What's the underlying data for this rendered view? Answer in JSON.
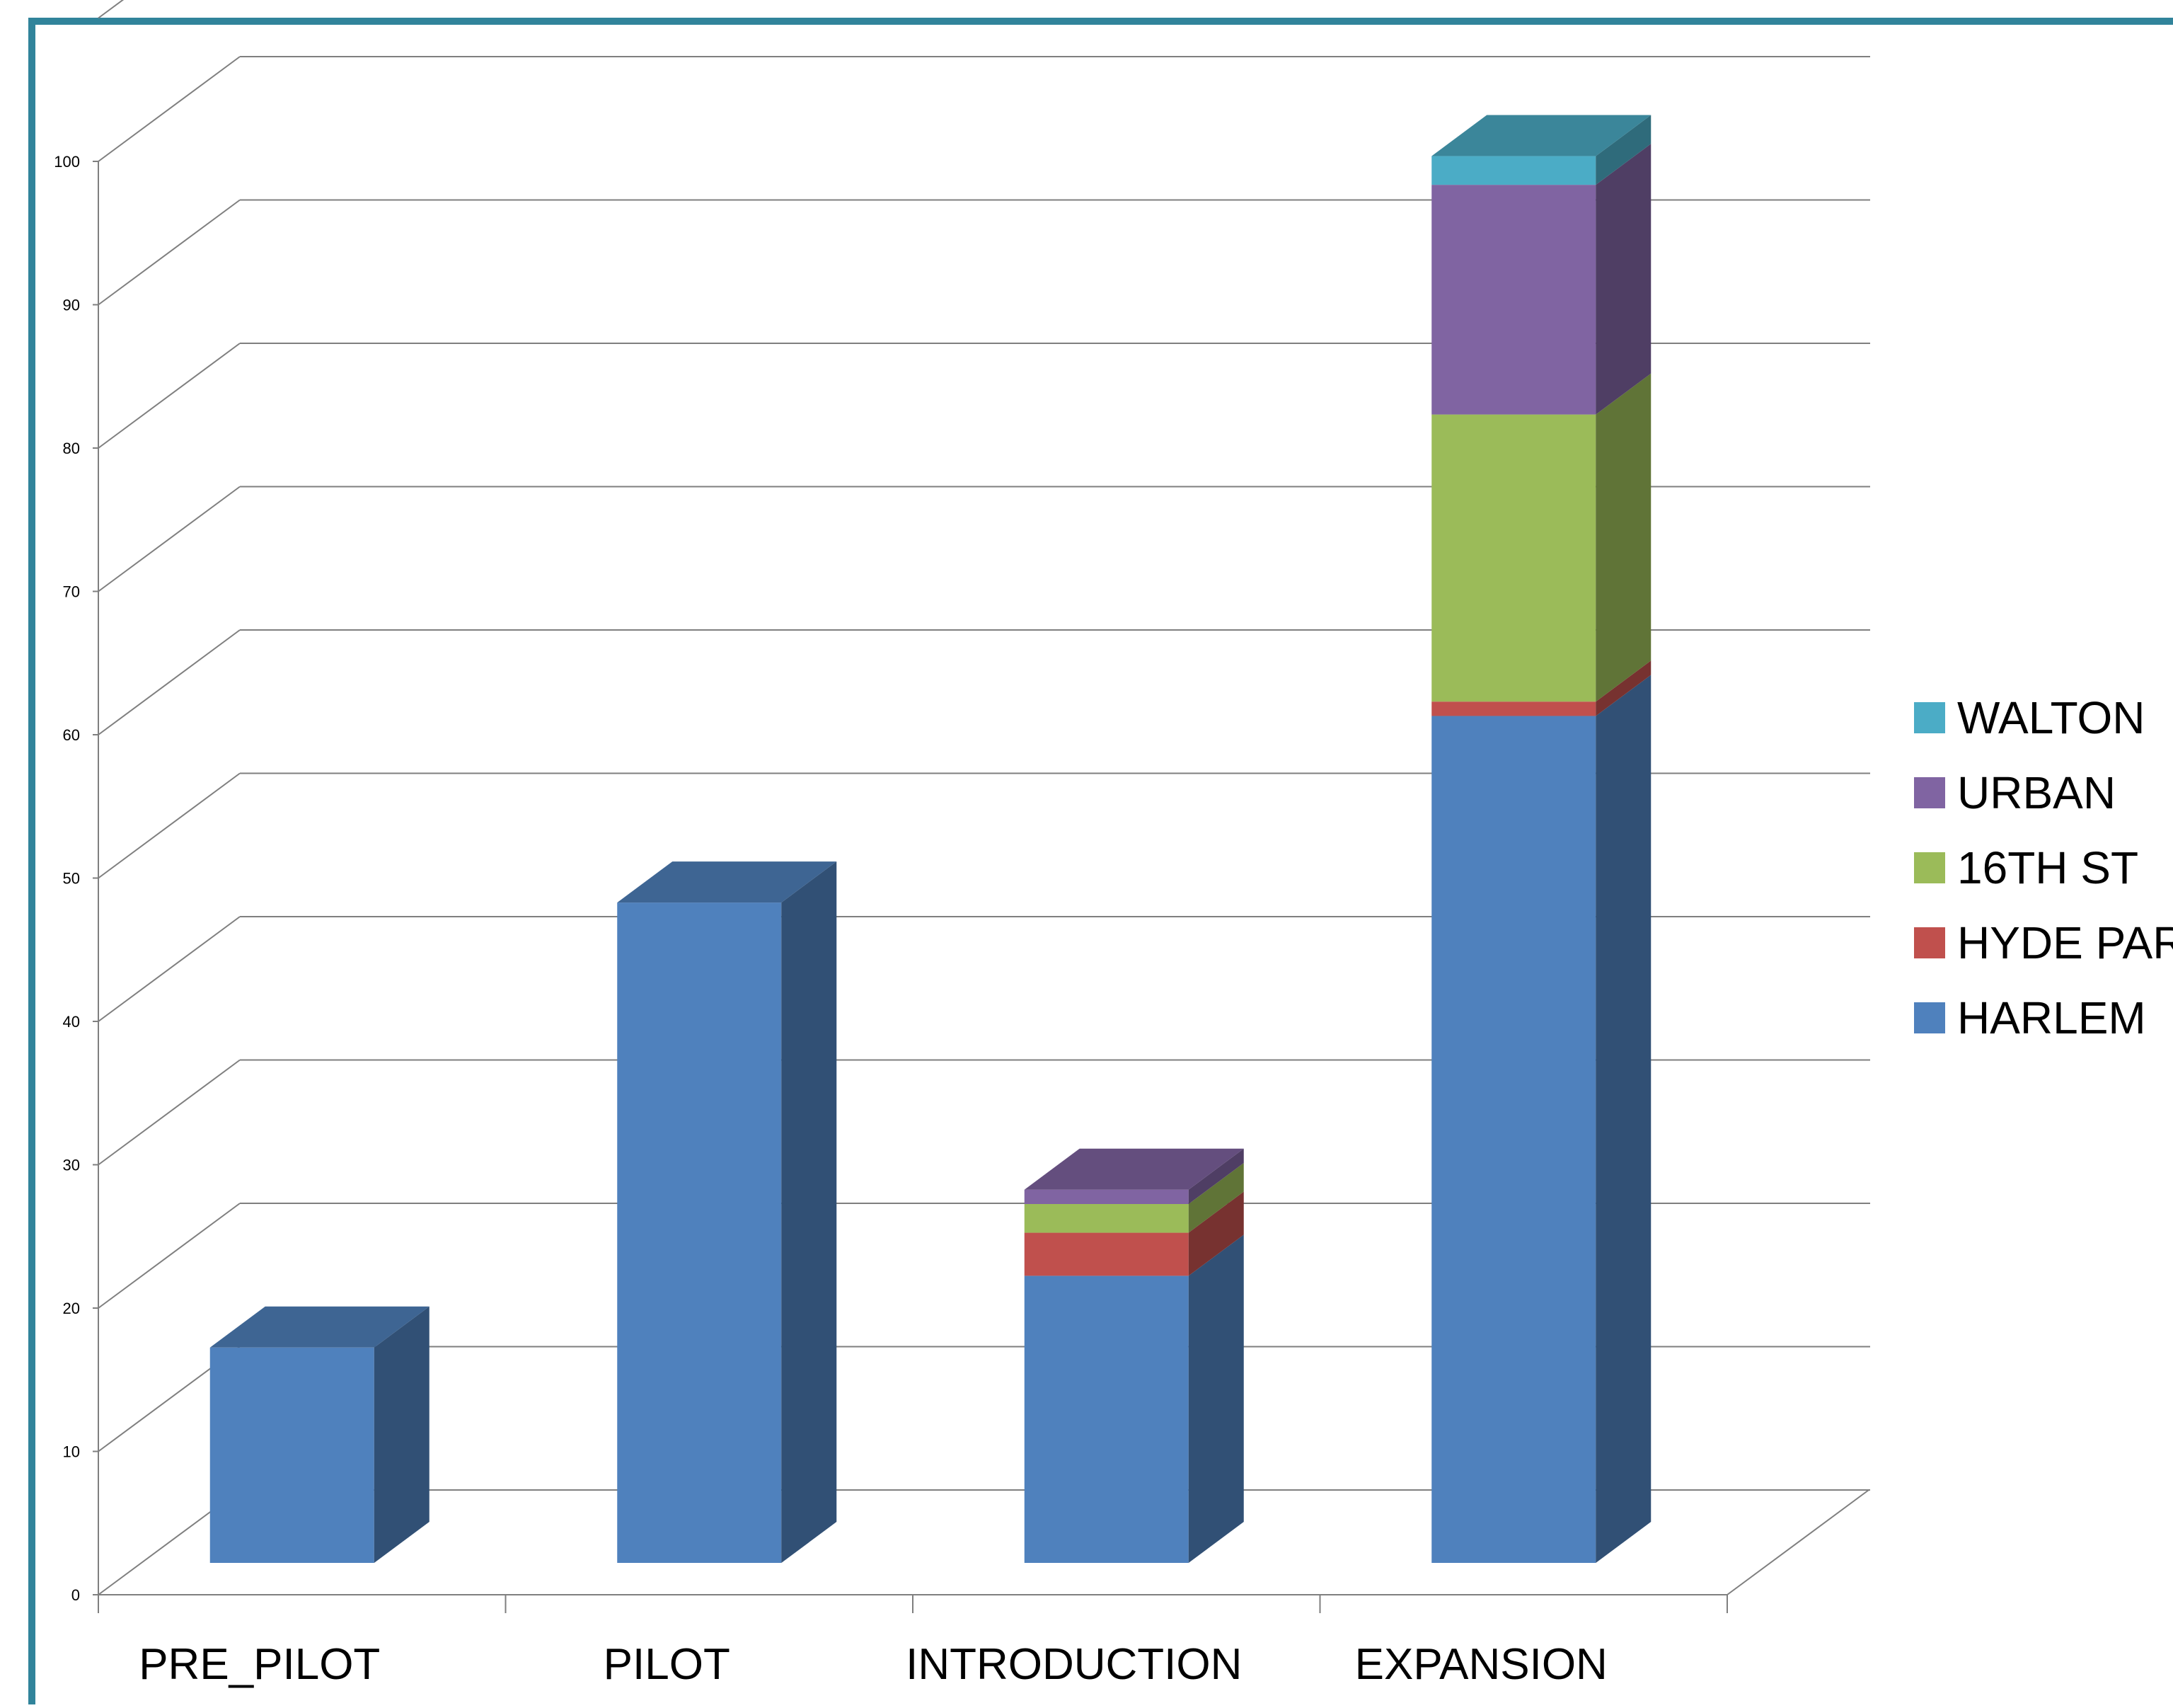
{
  "chart_data": {
    "type": "bar",
    "stacked": true,
    "three_d": true,
    "title": "",
    "xlabel": "",
    "ylabel": "",
    "ylim": [
      0,
      100
    ],
    "yticks": [
      0,
      10,
      20,
      30,
      40,
      50,
      60,
      70,
      80,
      90,
      100
    ],
    "categories": [
      "PRE_PILOT",
      "PILOT",
      "INTRODUCTION",
      "EXPANSION"
    ],
    "series": [
      {
        "name": "HARLEM",
        "color": "#4F81BD",
        "values": [
          15,
          46,
          20,
          59
        ]
      },
      {
        "name": "HYDE PARK",
        "color": "#C0504D",
        "values": [
          0,
          0,
          3,
          1
        ]
      },
      {
        "name": "16TH ST",
        "color": "#9BBB59",
        "values": [
          0,
          0,
          2,
          20
        ]
      },
      {
        "name": "URBAN",
        "color": "#8064A2",
        "values": [
          0,
          0,
          1,
          16
        ]
      },
      {
        "name": "WALTON",
        "color": "#4BACC6",
        "values": [
          0,
          0,
          0,
          2
        ]
      }
    ],
    "legend_position": "right",
    "grid": true
  },
  "frame_color": "#31849B"
}
